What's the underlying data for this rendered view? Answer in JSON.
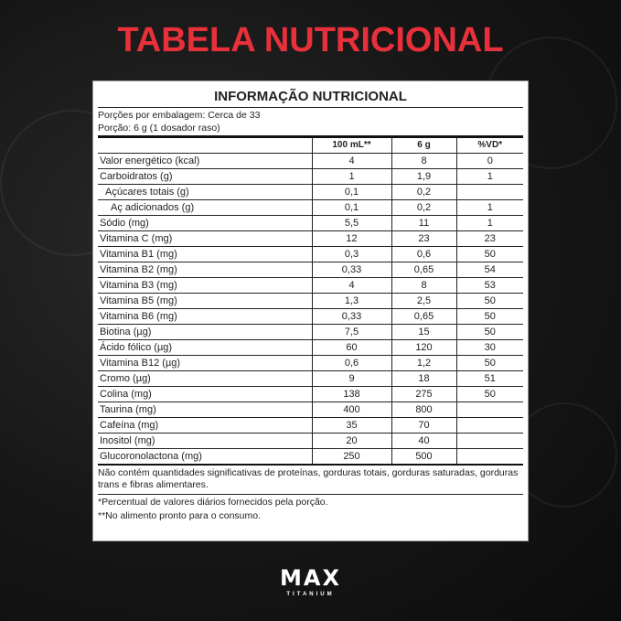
{
  "header": {
    "title": "TABELA NUTRICIONAL",
    "title_color": "#e8303a"
  },
  "label": {
    "heading": "INFORMAÇÃO NUTRICIONAL",
    "servings": "Porções por embalagem: Cerca de 33",
    "portion": "Porção: 6 g (1 dosador raso)",
    "columns": [
      "",
      "100 mL**",
      "6 g",
      "%VD*"
    ],
    "rows": [
      [
        "Valor energético (kcal)",
        "4",
        "8",
        "0"
      ],
      [
        "Carboidratos (g)",
        "1",
        "1,9",
        "1"
      ],
      [
        "Açúcares totais (g)",
        "0,1",
        "0,2",
        ""
      ],
      [
        "Aç adicionados (g)",
        "0,1",
        "0,2",
        "1"
      ],
      [
        "Sódio (mg)",
        "5,5",
        "11",
        "1"
      ],
      [
        "Vitamina C (mg)",
        "12",
        "23",
        "23"
      ],
      [
        "Vitamina B1 (mg)",
        "0,3",
        "0,6",
        "50"
      ],
      [
        "Vitamina B2 (mg)",
        "0,33",
        "0,65",
        "54"
      ],
      [
        "Vitamina B3 (mg)",
        "4",
        "8",
        "53"
      ],
      [
        "Vitamina B5 (mg)",
        "1,3",
        "2,5",
        "50"
      ],
      [
        "Vitamina B6 (mg)",
        "0,33",
        "0,65",
        "50"
      ],
      [
        "Biotina (µg)",
        "7,5",
        "15",
        "50"
      ],
      [
        "Ácido fólico (µg)",
        "60",
        "120",
        "30"
      ],
      [
        "Vitamina B12 (µg)",
        "0,6",
        "1,2",
        "50"
      ],
      [
        "Cromo (µg)",
        "9",
        "18",
        "51"
      ],
      [
        "Colina (mg)",
        "138",
        "275",
        "50"
      ],
      [
        "Taurina (mg)",
        "400",
        "800",
        ""
      ],
      [
        "Cafeína (mg)",
        "35",
        "70",
        ""
      ],
      [
        "Inositol (mg)",
        "20",
        "40",
        ""
      ],
      [
        "Glucoronolactona (mg)",
        "250",
        "500",
        ""
      ]
    ],
    "note": "Não contém quantidades significativas de proteínas, gorduras totais, gorduras saturadas, gorduras trans e fibras alimentares.",
    "footnotes": [
      "*Percentual de valores diários fornecidos pela porção.",
      "**No alimento pronto para o consumo."
    ]
  },
  "brand": {
    "logo": "MAX",
    "sub": "TITANIUM"
  }
}
